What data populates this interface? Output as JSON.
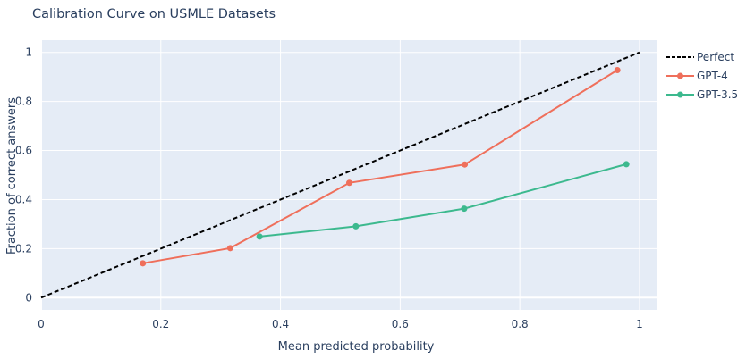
{
  "chart_data": {
    "type": "line",
    "title": "Calibration Curve on USMLE Datasets",
    "xlabel": "Mean predicted probability",
    "ylabel": "Fraction of correct answers",
    "xlim": [
      0,
      1.03
    ],
    "ylim": [
      -0.05,
      1.05
    ],
    "xticks": [
      0,
      0.2,
      0.4,
      0.6,
      0.8,
      1
    ],
    "yticks": [
      0,
      0.2,
      0.4,
      0.6,
      0.8,
      1
    ],
    "xtick_labels": [
      "0",
      "0.2",
      "0.4",
      "0.6",
      "0.8",
      "1"
    ],
    "ytick_labels": [
      "0",
      "0.2",
      "0.4",
      "0.6",
      "0.8",
      "1"
    ],
    "grid": true,
    "legend_position": "right",
    "series": [
      {
        "name": "Perfect",
        "color": "#000000",
        "dash": true,
        "markers": false,
        "x": [
          0,
          1
        ],
        "y": [
          0,
          1
        ]
      },
      {
        "name": "GPT-4",
        "color": "#EF6F5B",
        "dash": false,
        "markers": true,
        "x": [
          0.17,
          0.316,
          0.515,
          0.708,
          0.963
        ],
        "y": [
          0.14,
          0.202,
          0.468,
          0.543,
          0.928
        ]
      },
      {
        "name": "GPT-3.5",
        "color": "#3CB98E",
        "dash": false,
        "markers": true,
        "x": [
          0.365,
          0.526,
          0.707,
          0.978
        ],
        "y": [
          0.249,
          0.291,
          0.363,
          0.544
        ]
      }
    ]
  }
}
